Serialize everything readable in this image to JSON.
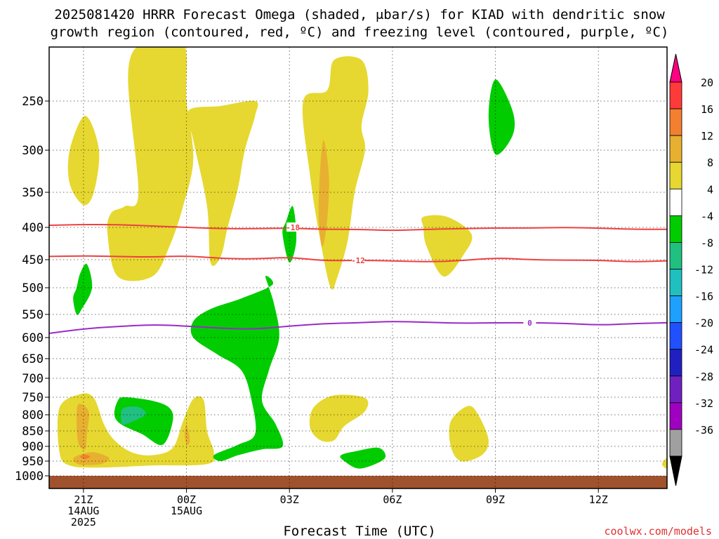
{
  "chart_data": {
    "type": "heatmap",
    "title_line1": "2025081420 HRRR Forecast Omega (shaded, μbar/s) for KIAD with dendritic snow",
    "title_line2": "growth region (contoured, red, ºC) and freezing level (contoured, purple, ºC)",
    "xlabel": "Forecast Time (UTC)",
    "credit": "coolwx.com/models",
    "x_ticks": [
      {
        "label": "21Z",
        "hour": 21,
        "sub": [
          "14AUG",
          "2025"
        ]
      },
      {
        "label": "00Z",
        "hour": 24,
        "sub": [
          "15AUG"
        ]
      },
      {
        "label": "03Z",
        "hour": 27,
        "sub": []
      },
      {
        "label": "06Z",
        "hour": 30,
        "sub": []
      },
      {
        "label": "09Z",
        "hour": 33,
        "sub": []
      },
      {
        "label": "12Z",
        "hour": 36,
        "sub": []
      }
    ],
    "xlim": [
      20,
      38
    ],
    "y_ticks": [
      250,
      300,
      350,
      400,
      450,
      500,
      550,
      600,
      650,
      700,
      750,
      800,
      850,
      900,
      950,
      1000
    ],
    "ylim_hpa": [
      200,
      1015
    ],
    "colorbar": {
      "labels": [
        "20",
        "16",
        "12",
        "8",
        "4",
        "-4",
        "-8",
        "-12",
        "-16",
        "-20",
        "-24",
        "-28",
        "-32",
        "-36"
      ],
      "colors": [
        "#ff0080",
        "#ff3a3a",
        "#f28030",
        "#e8b030",
        "#e6d830",
        "#ffffff",
        "#00cc00",
        "#20c080",
        "#20c0c0",
        "#1ea0ff",
        "#2050ff",
        "#2020c0",
        "#7020c0",
        "#a000c0",
        "#a0a0a0",
        "#000000"
      ]
    },
    "isotherms": [
      {
        "label": "-18",
        "color": "#ee4040",
        "points": [
          [
            20,
            397
          ],
          [
            21,
            396
          ],
          [
            22,
            396
          ],
          [
            23,
            398
          ],
          [
            24,
            400
          ],
          [
            25,
            402
          ],
          [
            26,
            402
          ],
          [
            27,
            401
          ],
          [
            28,
            403
          ],
          [
            29,
            403
          ],
          [
            30,
            405
          ],
          [
            31,
            403
          ],
          [
            32,
            402
          ],
          [
            33,
            401
          ],
          [
            34,
            401
          ],
          [
            35,
            400
          ],
          [
            36,
            401
          ],
          [
            37,
            403
          ],
          [
            38,
            403
          ]
        ]
      },
      {
        "label": "-12",
        "color": "#ee4040",
        "points": [
          [
            20,
            445
          ],
          [
            21,
            444
          ],
          [
            22,
            445
          ],
          [
            23,
            446
          ],
          [
            24,
            444
          ],
          [
            25,
            448
          ],
          [
            26,
            449
          ],
          [
            27,
            446
          ],
          [
            28,
            452
          ],
          [
            29,
            451
          ],
          [
            30,
            452
          ],
          [
            31,
            454
          ],
          [
            32,
            452
          ],
          [
            33,
            447
          ],
          [
            34,
            450
          ],
          [
            35,
            451
          ],
          [
            36,
            451
          ],
          [
            37,
            454
          ],
          [
            38,
            452
          ]
        ]
      },
      {
        "label": "0",
        "color": "#9a2ac8",
        "points": [
          [
            20,
            591
          ],
          [
            21,
            581
          ],
          [
            22,
            576
          ],
          [
            23,
            572
          ],
          [
            24,
            575
          ],
          [
            25,
            580
          ],
          [
            26,
            582
          ],
          [
            27,
            575
          ],
          [
            28,
            570
          ],
          [
            29,
            568
          ],
          [
            30,
            565
          ],
          [
            31,
            567
          ],
          [
            32,
            569
          ],
          [
            33,
            568
          ],
          [
            34,
            568
          ],
          [
            35,
            569
          ],
          [
            36,
            573
          ],
          [
            37,
            570
          ],
          [
            38,
            568
          ]
        ]
      }
    ],
    "omega_regions": [
      {
        "level": "4",
        "color": "#e6d830",
        "pts": [
          [
            21.05,
            265
          ],
          [
            21.45,
            300
          ],
          [
            21.3,
            350
          ],
          [
            21.0,
            368
          ],
          [
            20.6,
            340
          ],
          [
            20.6,
            300
          ]
        ]
      },
      {
        "level": "4",
        "color": "#e6d830",
        "pts": [
          [
            22.3,
            225
          ],
          [
            22.8,
            195
          ],
          [
            23.9,
            195
          ],
          [
            24.0,
            250
          ],
          [
            24.2,
            310
          ],
          [
            23.9,
            370
          ],
          [
            23.5,
            430
          ],
          [
            23.0,
            480
          ],
          [
            22.0,
            480
          ],
          [
            21.7,
            410
          ],
          [
            21.8,
            380
          ],
          [
            22.2,
            370
          ],
          [
            22.6,
            350
          ]
        ]
      },
      {
        "level": "4",
        "color": "#e6d830",
        "pts": [
          [
            24.05,
            260
          ],
          [
            25.0,
            255
          ],
          [
            26.0,
            250
          ],
          [
            26.0,
            265
          ],
          [
            25.7,
            300
          ],
          [
            25.5,
            345
          ],
          [
            25.2,
            400
          ],
          [
            25.0,
            445
          ],
          [
            24.7,
            455
          ],
          [
            24.6,
            370
          ],
          [
            24.2,
            290
          ]
        ]
      },
      {
        "level": "4",
        "color": "#e6d830",
        "pts": [
          [
            28.1,
            240
          ],
          [
            28.3,
            212
          ],
          [
            29.1,
            212
          ],
          [
            29.3,
            240
          ],
          [
            29.1,
            275
          ],
          [
            29.2,
            300
          ],
          [
            28.9,
            350
          ],
          [
            28.7,
            420
          ],
          [
            28.4,
            480
          ],
          [
            28.2,
            500
          ],
          [
            27.9,
            420
          ],
          [
            27.6,
            330
          ],
          [
            27.4,
            250
          ]
        ]
      },
      {
        "level": "4",
        "color": "#e6d830",
        "pts": [
          [
            30.9,
            385
          ],
          [
            31.6,
            385
          ],
          [
            32.3,
            410
          ],
          [
            32.1,
            440
          ],
          [
            31.5,
            480
          ],
          [
            31.0,
            430
          ],
          [
            30.9,
            400
          ]
        ]
      },
      {
        "level": "4",
        "color": "#e6d830",
        "pts": [
          [
            20.9,
            742
          ],
          [
            21.3,
            752
          ],
          [
            21.6,
            830
          ],
          [
            21.9,
            880
          ],
          [
            22.4,
            920
          ],
          [
            23.0,
            930
          ],
          [
            23.6,
            905
          ],
          [
            23.9,
            820
          ],
          [
            24.2,
            755
          ],
          [
            24.5,
            758
          ],
          [
            24.6,
            850
          ],
          [
            24.8,
            922
          ],
          [
            24.6,
            960
          ],
          [
            23.0,
            965
          ],
          [
            21.5,
            972
          ],
          [
            20.6,
            965
          ],
          [
            20.3,
            920
          ],
          [
            20.3,
            780
          ]
        ]
      },
      {
        "level": "4",
        "color": "#e6d830",
        "pts": [
          [
            27.7,
            780
          ],
          [
            28.3,
            745
          ],
          [
            29.2,
            752
          ],
          [
            29.2,
            790
          ],
          [
            28.6,
            835
          ],
          [
            28.3,
            880
          ],
          [
            27.9,
            880
          ],
          [
            27.6,
            840
          ]
        ]
      },
      {
        "level": "4",
        "color": "#e6d830",
        "pts": [
          [
            32.2,
            775
          ],
          [
            32.5,
            800
          ],
          [
            32.8,
            880
          ],
          [
            32.6,
            930
          ],
          [
            32.0,
            950
          ],
          [
            31.7,
            900
          ],
          [
            31.7,
            820
          ]
        ]
      },
      {
        "level": "4",
        "color": "#e6d830",
        "pts": [
          [
            38.0,
            940
          ],
          [
            37.85,
            960
          ],
          [
            38.0,
            975
          ]
        ]
      },
      {
        "level": "8",
        "color": "#e8b030",
        "pts": [
          [
            20.85,
            770
          ],
          [
            21.15,
            790
          ],
          [
            21.1,
            860
          ],
          [
            21.05,
            910
          ],
          [
            20.85,
            890
          ],
          [
            20.8,
            820
          ]
        ]
      },
      {
        "level": "8",
        "color": "#e8b030",
        "pts": [
          [
            28.0,
            290
          ],
          [
            28.15,
            330
          ],
          [
            28.1,
            390
          ],
          [
            27.95,
            430
          ],
          [
            27.85,
            380
          ],
          [
            27.9,
            320
          ]
        ]
      },
      {
        "level": "8",
        "color": "#e8b030",
        "pts": [
          [
            24.0,
            830
          ],
          [
            24.1,
            880
          ],
          [
            24.0,
            895
          ],
          [
            23.95,
            860
          ]
        ]
      },
      {
        "level": "8",
        "color": "#e8b030",
        "pts": [
          [
            20.85,
            930
          ],
          [
            21.3,
            920
          ],
          [
            21.75,
            940
          ],
          [
            21.5,
            960
          ],
          [
            20.9,
            962
          ],
          [
            20.7,
            945
          ]
        ]
      },
      {
        "level": "12",
        "color": "#f28030",
        "pts": [
          [
            21.05,
            928
          ],
          [
            21.2,
            935
          ],
          [
            21.05,
            943
          ],
          [
            20.9,
            935
          ]
        ]
      },
      {
        "level": "-4",
        "color": "#00cc00",
        "pts": [
          [
            33.0,
            230
          ],
          [
            33.5,
            260
          ],
          [
            33.5,
            285
          ],
          [
            33.0,
            305
          ],
          [
            32.8,
            265
          ]
        ]
      },
      {
        "level": "-4",
        "color": "#00cc00",
        "pts": [
          [
            26.9,
            392
          ],
          [
            27.1,
            370
          ],
          [
            27.2,
            420
          ],
          [
            27.0,
            455
          ],
          [
            26.8,
            410
          ]
        ]
      },
      {
        "level": "-4",
        "color": "#00cc00",
        "pts": [
          [
            20.8,
            500
          ],
          [
            20.9,
            475
          ],
          [
            21.1,
            458
          ],
          [
            21.25,
            500
          ],
          [
            20.95,
            540
          ],
          [
            20.8,
            550
          ],
          [
            20.7,
            520
          ]
        ]
      },
      {
        "level": "-4",
        "color": "#00cc00",
        "pts": [
          [
            24.2,
            565
          ],
          [
            24.7,
            540
          ],
          [
            25.6,
            520
          ],
          [
            26.5,
            495
          ],
          [
            26.3,
            480
          ],
          [
            26.55,
            530
          ],
          [
            26.7,
            600
          ],
          [
            26.4,
            680
          ],
          [
            26.2,
            760
          ],
          [
            26.6,
            830
          ],
          [
            26.8,
            900
          ],
          [
            26.2,
            910
          ],
          [
            25.5,
            930
          ],
          [
            25.0,
            950
          ],
          [
            24.8,
            930
          ],
          [
            25.5,
            895
          ],
          [
            26.0,
            860
          ],
          [
            25.9,
            760
          ],
          [
            25.6,
            680
          ],
          [
            24.9,
            640
          ],
          [
            24.2,
            600
          ]
        ]
      },
      {
        "level": "-4",
        "color": "#00cc00",
        "pts": [
          [
            22.2,
            750
          ],
          [
            23.0,
            760
          ],
          [
            23.5,
            780
          ],
          [
            23.6,
            820
          ],
          [
            23.3,
            895
          ],
          [
            22.7,
            860
          ],
          [
            22.1,
            830
          ],
          [
            21.9,
            800
          ],
          [
            22.0,
            760
          ]
        ]
      },
      {
        "level": "-4",
        "color": "#00cc00",
        "pts": [
          [
            29.0,
            915
          ],
          [
            29.6,
            905
          ],
          [
            29.8,
            935
          ],
          [
            29.5,
            960
          ],
          [
            29.0,
            975
          ],
          [
            28.6,
            950
          ],
          [
            28.5,
            930
          ]
        ]
      },
      {
        "level": "-8",
        "color": "#20c080",
        "pts": [
          [
            22.15,
            782
          ],
          [
            22.6,
            778
          ],
          [
            22.8,
            800
          ],
          [
            22.2,
            830
          ],
          [
            22.1,
            820
          ]
        ]
      }
    ],
    "ground": {
      "from_hpa": 1000,
      "color": "#a0522d"
    },
    "isotherm_labels": [
      {
        "text": "-18",
        "hour": 27.1,
        "hpa": 400,
        "color": "#ee4040"
      },
      {
        "text": "-12",
        "hour": 29.0,
        "hpa": 451,
        "color": "#ee4040"
      },
      {
        "text": "0",
        "hour": 34.0,
        "hpa": 568,
        "color": "#9a2ac8"
      }
    ]
  }
}
